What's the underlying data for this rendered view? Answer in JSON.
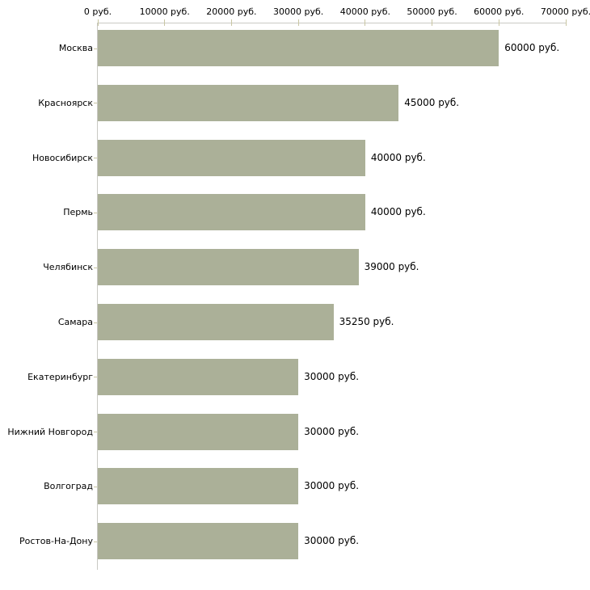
{
  "chart_data": {
    "type": "bar",
    "orientation": "horizontal",
    "title": "",
    "categories": [
      "Москва",
      "Красноярск",
      "Новосибирск",
      "Пермь",
      "Челябинск",
      "Самара",
      "Екатеринбург",
      "Нижний Новгород",
      "Волгоград",
      "Ростов-На-Дону"
    ],
    "values": [
      60000,
      45000,
      40000,
      40000,
      39000,
      35250,
      30000,
      30000,
      30000,
      30000
    ],
    "value_labels": [
      "60000 руб.",
      "45000 руб.",
      "40000 руб.",
      "40000 руб.",
      "39000 руб.",
      "35250 руб.",
      "30000 руб.",
      "30000 руб.",
      "30000 руб.",
      "30000 руб."
    ],
    "x_axis": {
      "position": "top",
      "min": 0,
      "max": 70000,
      "tick_interval": 10000,
      "tick_values": [
        0,
        10000,
        20000,
        30000,
        40000,
        50000,
        60000,
        70000
      ],
      "tick_labels": [
        "0 руб.",
        "10000 руб.",
        "20000 руб.",
        "30000 руб.",
        "40000 руб.",
        "50000 руб.",
        "60000 руб.",
        "70000 руб."
      ]
    },
    "ylabel": "",
    "xlabel": "",
    "legend": null,
    "grid": false,
    "colors": {
      "bar": "#abb098",
      "axis_line": "#c9c9c4",
      "tick_mark": "#c9c6a3",
      "text": "#000000",
      "background": "#ffffff"
    }
  }
}
